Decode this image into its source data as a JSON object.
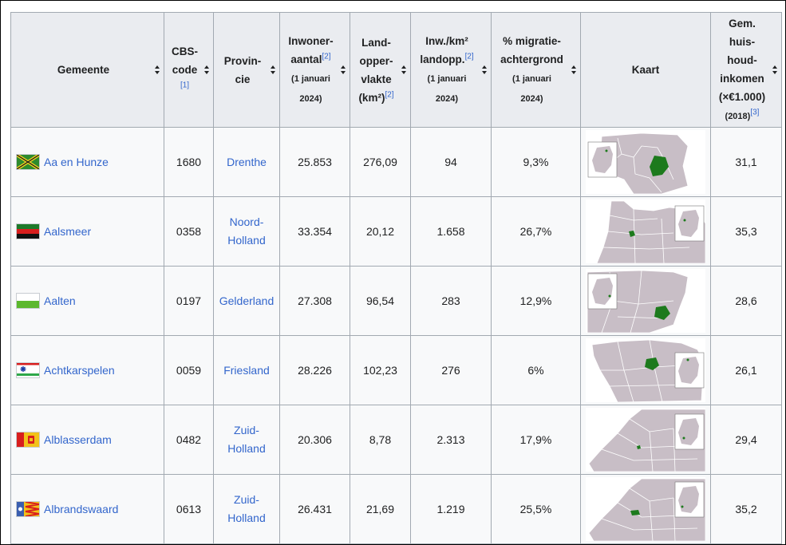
{
  "columns": [
    {
      "lines": [
        "Gemeente"
      ]
    },
    {
      "lines": [
        "CBS-",
        "code"
      ],
      "ref": "[1]"
    },
    {
      "lines": [
        "Provin-",
        "cie"
      ]
    },
    {
      "lines": [
        "Inwoner-",
        "aantal"
      ],
      "ref": "[2]",
      "small": [
        "(1 januari",
        "2024)"
      ]
    },
    {
      "lines": [
        "Land-",
        "opper-",
        "vlakte",
        "(km²)"
      ],
      "ref": "[2]"
    },
    {
      "lines": [
        "Inw./km²",
        "landopp."
      ],
      "ref": "[2]",
      "small": [
        "(1 januari",
        "2024)"
      ]
    },
    {
      "lines": [
        "% migratie-",
        "achtergrond"
      ],
      "small": [
        "(1 januari",
        "2024)"
      ]
    },
    {
      "lines": [
        "Kaart"
      ]
    },
    {
      "lines": [
        "Gem.",
        "huis-",
        "houd-",
        "inkomen",
        "(×€1.000)"
      ],
      "small": [
        "(2018)"
      ],
      "ref": "[3]"
    }
  ],
  "header": {
    "gemeente": "Gemeente",
    "cbs_1": "CBS-",
    "cbs_2": "code",
    "cbs_ref": "[1]",
    "prov_1": "Provin-",
    "prov_2": "cie",
    "inw_1": "Inwoner-",
    "inw_2": "aantal",
    "inw_ref": "[2]",
    "inw_s1": "(1 januari",
    "inw_s2": "2024)",
    "land_1": "Land-",
    "land_2": "opper-",
    "land_3": "vlakte",
    "land_4": "(km²)",
    "land_ref": "[2]",
    "dens_1": "Inw./km²",
    "dens_2": "landopp.",
    "dens_ref": "[2]",
    "dens_s1": "(1 januari",
    "dens_s2": "2024)",
    "mig_1": "% migratie-",
    "mig_2": "achtergrond",
    "mig_s1": "(1 januari",
    "mig_s2": "2024)",
    "kaart": "Kaart",
    "ink_1": "Gem.",
    "ink_2": "huis-",
    "ink_3": "houd-",
    "ink_4": "inkomen",
    "ink_5": "(×€1.000)",
    "ink_s": "(2018)",
    "ink_ref": "[3]"
  },
  "rows": [
    {
      "name": "Aa en Hunze",
      "cbs": "1680",
      "prov1": "Drenthe",
      "prov2": "",
      "inw": "25.853",
      "land": "276,09",
      "dens": "94",
      "mig": "9,3%",
      "ink": "31,1",
      "flag": "aa-en-hunze-flag"
    },
    {
      "name": "Aalsmeer",
      "cbs": "0358",
      "prov1": "Noord-",
      "prov2": "Holland",
      "inw": "33.354",
      "land": "20,12",
      "dens": "1.658",
      "mig": "26,7%",
      "ink": "35,3",
      "flag": "aalsmeer-flag"
    },
    {
      "name": "Aalten",
      "cbs": "0197",
      "prov1": "Gelderland",
      "prov2": "",
      "inw": "27.308",
      "land": "96,54",
      "dens": "283",
      "mig": "12,9%",
      "ink": "28,6",
      "flag": "aalten-flag"
    },
    {
      "name": "Achtkarspelen",
      "cbs": "0059",
      "prov1": "Friesland",
      "prov2": "",
      "inw": "28.226",
      "land": "102,23",
      "dens": "276",
      "mig": "6%",
      "ink": "26,1",
      "flag": "achtkarspelen-flag"
    },
    {
      "name": "Alblasserdam",
      "cbs": "0482",
      "prov1": "Zuid-",
      "prov2": "Holland",
      "inw": "20.306",
      "land": "8,78",
      "dens": "2.313",
      "mig": "17,9%",
      "ink": "29,4",
      "flag": "alblasserdam-flag"
    },
    {
      "name": "Albrandswaard",
      "cbs": "0613",
      "prov1": "Zuid-",
      "prov2": "Holland",
      "inw": "26.431",
      "land": "21,69",
      "dens": "1.219",
      "mig": "25,5%",
      "ink": "35,2",
      "flag": "albrandswaard-flag"
    }
  ],
  "colors": {
    "link": "#3366cc",
    "header_bg": "#eaecf0",
    "cell_bg": "#f8f9fa",
    "border": "#a2a9b1",
    "map_land": "#c8bec6",
    "map_highlight": "#1d7a1d"
  }
}
